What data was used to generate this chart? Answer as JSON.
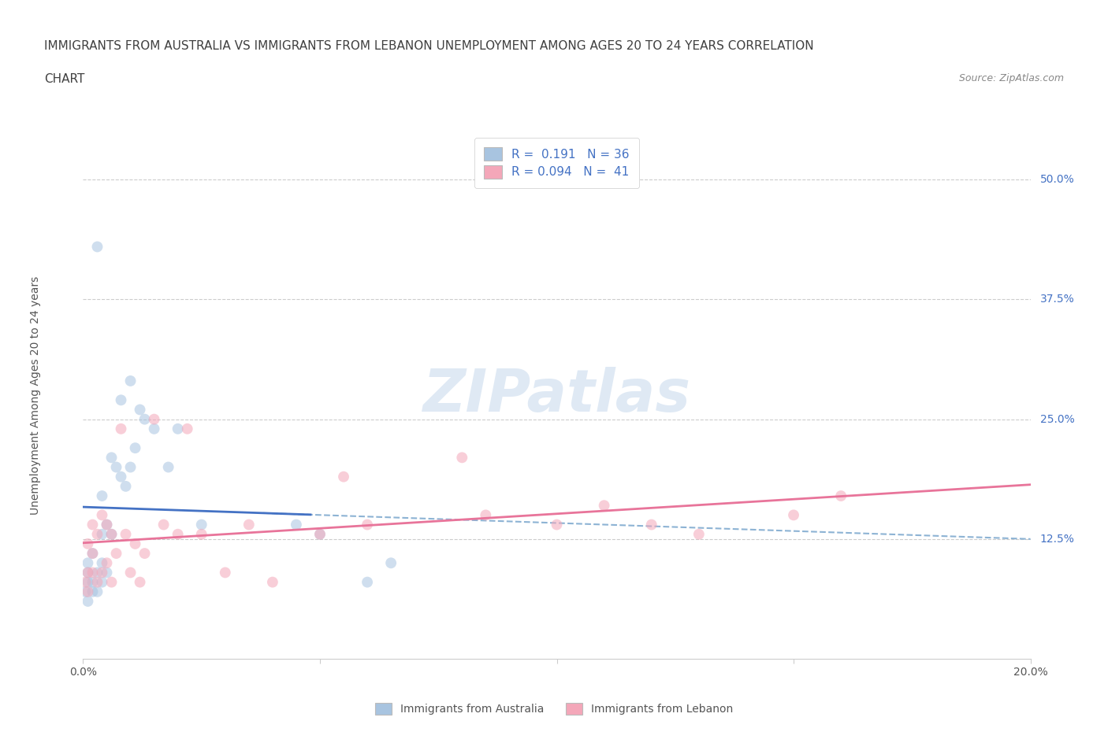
{
  "title_line1": "IMMIGRANTS FROM AUSTRALIA VS IMMIGRANTS FROM LEBANON UNEMPLOYMENT AMONG AGES 20 TO 24 YEARS CORRELATION",
  "title_line2": "CHART",
  "source_text": "Source: ZipAtlas.com",
  "ylabel": "Unemployment Among Ages 20 to 24 years",
  "xlim": [
    0.0,
    0.2
  ],
  "ylim": [
    0.0,
    0.55
  ],
  "ytick_positions": [
    0.125,
    0.25,
    0.375,
    0.5
  ],
  "ytick_labels": [
    "12.5%",
    "25.0%",
    "37.5%",
    "50.0%"
  ],
  "australia_color": "#a8c4e0",
  "lebanon_color": "#f4a7b9",
  "australia_line_color": "#4472C4",
  "lebanon_line_color": "#E8749A",
  "trend_dash_color": "#8db3d4",
  "australia_R": 0.191,
  "australia_N": 36,
  "lebanon_R": 0.094,
  "lebanon_N": 41,
  "watermark": "ZIPatlas",
  "legend_label_australia": "Immigrants from Australia",
  "legend_label_lebanon": "Immigrants from Lebanon",
  "australia_x": [
    0.0005,
    0.001,
    0.001,
    0.001,
    0.001,
    0.002,
    0.002,
    0.002,
    0.003,
    0.003,
    0.003,
    0.004,
    0.004,
    0.004,
    0.004,
    0.005,
    0.005,
    0.006,
    0.006,
    0.007,
    0.008,
    0.008,
    0.009,
    0.01,
    0.01,
    0.011,
    0.012,
    0.013,
    0.015,
    0.018,
    0.02,
    0.025,
    0.045,
    0.05,
    0.06,
    0.065
  ],
  "australia_y": [
    0.07,
    0.06,
    0.08,
    0.09,
    0.1,
    0.07,
    0.08,
    0.11,
    0.07,
    0.09,
    0.43,
    0.08,
    0.1,
    0.13,
    0.17,
    0.09,
    0.14,
    0.13,
    0.21,
    0.2,
    0.19,
    0.27,
    0.18,
    0.2,
    0.29,
    0.22,
    0.26,
    0.25,
    0.24,
    0.2,
    0.24,
    0.14,
    0.14,
    0.13,
    0.08,
    0.1
  ],
  "lebanon_x": [
    0.0005,
    0.001,
    0.001,
    0.001,
    0.002,
    0.002,
    0.002,
    0.003,
    0.003,
    0.004,
    0.004,
    0.005,
    0.005,
    0.006,
    0.006,
    0.007,
    0.008,
    0.009,
    0.01,
    0.011,
    0.012,
    0.013,
    0.015,
    0.017,
    0.02,
    0.022,
    0.025,
    0.03,
    0.035,
    0.04,
    0.05,
    0.055,
    0.06,
    0.08,
    0.085,
    0.1,
    0.11,
    0.12,
    0.13,
    0.15,
    0.16
  ],
  "lebanon_y": [
    0.08,
    0.07,
    0.09,
    0.12,
    0.09,
    0.11,
    0.14,
    0.08,
    0.13,
    0.09,
    0.15,
    0.1,
    0.14,
    0.08,
    0.13,
    0.11,
    0.24,
    0.13,
    0.09,
    0.12,
    0.08,
    0.11,
    0.25,
    0.14,
    0.13,
    0.24,
    0.13,
    0.09,
    0.14,
    0.08,
    0.13,
    0.19,
    0.14,
    0.21,
    0.15,
    0.14,
    0.16,
    0.14,
    0.13,
    0.15,
    0.17
  ],
  "background_color": "#ffffff",
  "grid_color": "#cccccc",
  "title_color": "#404040",
  "axis_label_color": "#555555",
  "ytick_right_color": "#4472C4",
  "marker_size": 100,
  "marker_alpha": 0.55
}
